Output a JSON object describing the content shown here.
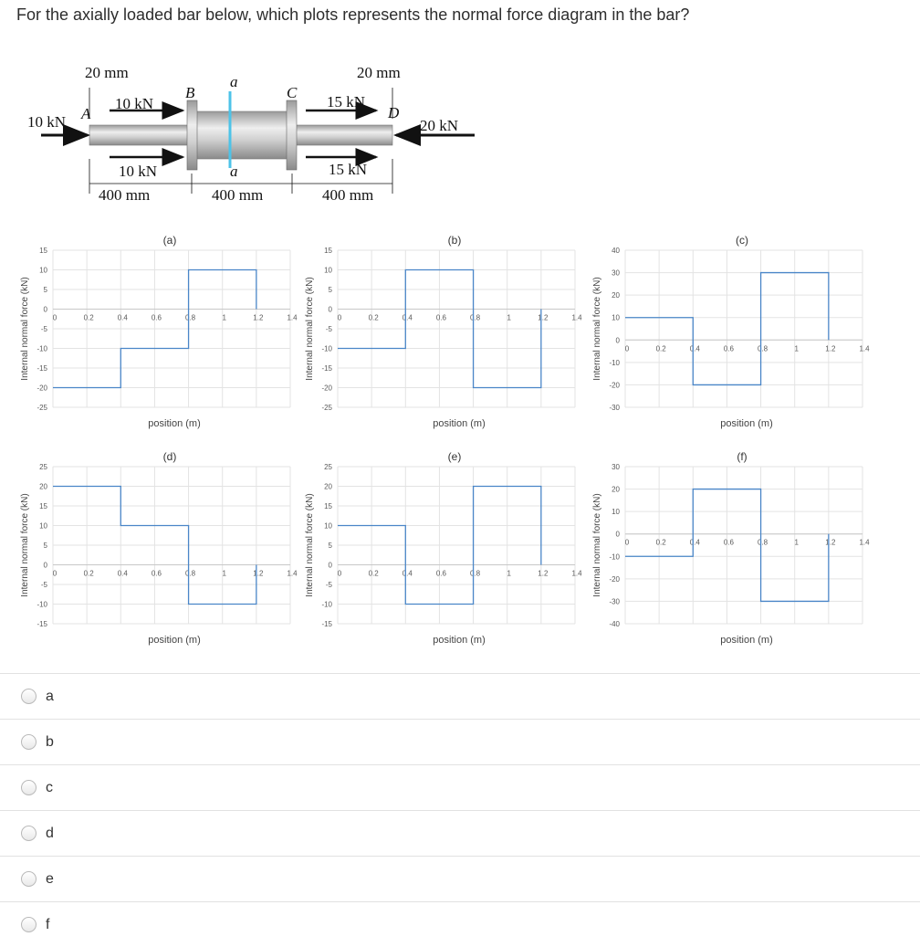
{
  "question": "For the axially loaded bar below, which plots represents the normal force diagram in the bar?",
  "bar_figure": {
    "dim_top_left": "20 mm",
    "dim_top_right": "20 mm",
    "load_A_left": "10 kN",
    "load_A_top": "10 kN",
    "load_A_bottom": "10 kN",
    "load_C_top": "15 kN",
    "load_C_bottom": "15 kN",
    "load_D_right": "20 kN",
    "point_A": "A",
    "point_B": "B",
    "point_C": "C",
    "point_D": "D",
    "section_top": "a",
    "section_bottom": "a",
    "span_1": "400 mm",
    "span_2": "400 mm",
    "span_3": "400 mm",
    "colors": {
      "bar": "#c9c9c9",
      "cut": "#4dc3e8",
      "arrow": "#111111"
    }
  },
  "chart_data": [
    {
      "type": "line",
      "title": "(a)",
      "xlabel": "position (m)",
      "ylabel": "Internal normal force (kN)",
      "ylim": [
        -25,
        15
      ],
      "yticks": [
        -25,
        -20,
        -15,
        -10,
        -5,
        0,
        5,
        10,
        15
      ],
      "xticks": [
        0,
        0.2,
        0.4,
        0.6,
        0.8,
        1,
        1.2,
        1.4
      ],
      "series": [
        {
          "x": [
            0,
            0.4,
            0.4,
            0.8,
            0.8,
            1.2,
            1.2
          ],
          "y": [
            -20,
            -20,
            -10,
            -10,
            10,
            10,
            0
          ]
        }
      ]
    },
    {
      "type": "line",
      "title": "(b)",
      "xlabel": "position (m)",
      "ylabel": "Internal normal force (kN)",
      "ylim": [
        -25,
        15
      ],
      "yticks": [
        -25,
        -20,
        -15,
        -10,
        -5,
        0,
        5,
        10,
        15
      ],
      "xticks": [
        0,
        0.2,
        0.4,
        0.6,
        0.8,
        1,
        1.2,
        1.4
      ],
      "series": [
        {
          "x": [
            0,
            0.4,
            0.4,
            0.8,
            0.8,
            1.2,
            1.2
          ],
          "y": [
            -10,
            -10,
            10,
            10,
            -20,
            -20,
            0
          ]
        }
      ]
    },
    {
      "type": "line",
      "title": "(c)",
      "xlabel": "position (m)",
      "ylabel": "Internal normal force (kN)",
      "ylim": [
        -30,
        40
      ],
      "yticks": [
        -30,
        -20,
        -10,
        0,
        10,
        20,
        30,
        40
      ],
      "xticks": [
        0,
        0.2,
        0.4,
        0.6,
        0.8,
        1,
        1.2,
        1.4
      ],
      "series": [
        {
          "x": [
            0,
            0.4,
            0.4,
            0.8,
            0.8,
            1.2,
            1.2
          ],
          "y": [
            10,
            10,
            -20,
            -20,
            30,
            30,
            0
          ]
        }
      ]
    },
    {
      "type": "line",
      "title": "(d)",
      "xlabel": "position (m)",
      "ylabel": "Internal normal force (kN)",
      "ylim": [
        -15,
        25
      ],
      "yticks": [
        -15,
        -10,
        -5,
        0,
        5,
        10,
        15,
        20,
        25
      ],
      "xticks": [
        0,
        0.2,
        0.4,
        0.6,
        0.8,
        1,
        1.2,
        1.4
      ],
      "series": [
        {
          "x": [
            0,
            0.4,
            0.4,
            0.8,
            0.8,
            1.2,
            1.2
          ],
          "y": [
            20,
            20,
            10,
            10,
            -10,
            -10,
            0
          ]
        }
      ]
    },
    {
      "type": "line",
      "title": "(e)",
      "xlabel": "position (m)",
      "ylabel": "Internal normal force (kN)",
      "ylim": [
        -15,
        25
      ],
      "yticks": [
        -15,
        -10,
        -5,
        0,
        5,
        10,
        15,
        20,
        25
      ],
      "xticks": [
        0,
        0.2,
        0.4,
        0.6,
        0.8,
        1,
        1.2,
        1.4
      ],
      "series": [
        {
          "x": [
            0,
            0.4,
            0.4,
            0.8,
            0.8,
            1.2,
            1.2
          ],
          "y": [
            10,
            10,
            -10,
            -10,
            20,
            20,
            0
          ]
        }
      ]
    },
    {
      "type": "line",
      "title": "(f)",
      "xlabel": "position (m)",
      "ylabel": "Internal normal force (kN)",
      "ylim": [
        -40,
        30
      ],
      "yticks": [
        -40,
        -30,
        -20,
        -10,
        0,
        10,
        20,
        30
      ],
      "xticks": [
        0,
        0.2,
        0.4,
        0.6,
        0.8,
        1,
        1.2,
        1.4
      ],
      "series": [
        {
          "x": [
            0,
            0.4,
            0.4,
            0.8,
            0.8,
            1.2,
            1.2
          ],
          "y": [
            -10,
            -10,
            20,
            20,
            -30,
            -30,
            0
          ]
        }
      ]
    }
  ],
  "choices": [
    "a",
    "b",
    "c",
    "d",
    "e",
    "f"
  ],
  "line_color": "#4a86c8"
}
